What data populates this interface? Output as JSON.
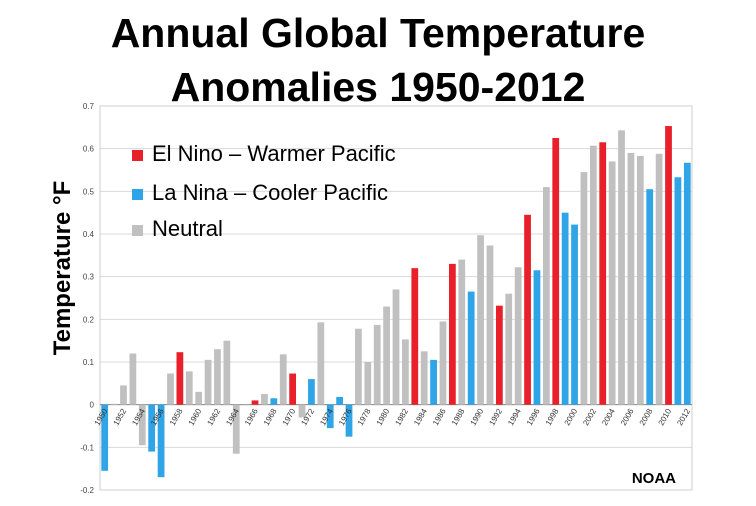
{
  "chart_data": {
    "type": "bar",
    "title_line1": "Annual Global Temperature",
    "title_line2": "Anomalies 1950-2012",
    "ylabel": "Temperature °F",
    "xlabel": "",
    "source": "NOAA",
    "ylim": [
      -0.2,
      0.7
    ],
    "yticks": [
      "0.7",
      "0.6",
      "0.5",
      "0.4",
      "0.3",
      "0.2",
      "0.1",
      "0",
      "-0.1",
      "-0.2"
    ],
    "grid": true,
    "legend_position": "top-left",
    "legend": [
      {
        "key": "elnino",
        "label": "El Nino – Warmer Pacific",
        "color": "#e8202a"
      },
      {
        "key": "lanina",
        "label": "La Nina – Cooler Pacific",
        "color": "#2fa4e7"
      },
      {
        "key": "neutral",
        "label": "Neutral",
        "color": "#c0c0c0"
      }
    ],
    "years": [
      1950,
      1951,
      1952,
      1953,
      1954,
      1955,
      1956,
      1957,
      1958,
      1959,
      1960,
      1961,
      1962,
      1963,
      1964,
      1965,
      1966,
      1967,
      1968,
      1969,
      1970,
      1971,
      1972,
      1973,
      1974,
      1975,
      1976,
      1977,
      1978,
      1979,
      1980,
      1981,
      1982,
      1983,
      1984,
      1985,
      1986,
      1987,
      1988,
      1989,
      1990,
      1991,
      1992,
      1993,
      1994,
      1995,
      1996,
      1997,
      1998,
      1999,
      2000,
      2001,
      2002,
      2003,
      2004,
      2005,
      2006,
      2007,
      2008,
      2009,
      2010,
      2011,
      2012
    ],
    "values": [
      -0.155,
      0.002,
      0.045,
      0.12,
      -0.095,
      -0.11,
      -0.17,
      0.073,
      0.123,
      0.078,
      0.03,
      0.105,
      0.13,
      0.15,
      -0.115,
      0.0,
      0.01,
      0.025,
      0.015,
      0.118,
      0.073,
      -0.03,
      0.06,
      0.193,
      -0.055,
      0.018,
      -0.075,
      0.178,
      0.1,
      0.187,
      0.23,
      0.27,
      0.153,
      0.32,
      0.125,
      0.105,
      0.195,
      0.33,
      0.34,
      0.265,
      0.397,
      0.373,
      0.232,
      0.26,
      0.322,
      0.445,
      0.315,
      0.51,
      0.625,
      0.45,
      0.422,
      0.545,
      0.607,
      0.615,
      0.57,
      0.643,
      0.59,
      0.583,
      0.505,
      0.588,
      0.653,
      0.533,
      0.567
    ],
    "phases": [
      "lanina",
      "neutral",
      "neutral",
      "neutral",
      "neutral",
      "lanina",
      "lanina",
      "neutral",
      "elnino",
      "neutral",
      "neutral",
      "neutral",
      "neutral",
      "neutral",
      "neutral",
      "neutral",
      "elnino",
      "neutral",
      "lanina",
      "neutral",
      "elnino",
      "neutral",
      "lanina",
      "neutral",
      "lanina",
      "lanina",
      "lanina",
      "neutral",
      "neutral",
      "neutral",
      "neutral",
      "neutral",
      "neutral",
      "elnino",
      "neutral",
      "lanina",
      "neutral",
      "elnino",
      "neutral",
      "lanina",
      "neutral",
      "neutral",
      "elnino",
      "neutral",
      "neutral",
      "elnino",
      "lanina",
      "neutral",
      "elnino",
      "lanina",
      "lanina",
      "neutral",
      "neutral",
      "elnino",
      "neutral",
      "neutral",
      "neutral",
      "neutral",
      "lanina",
      "neutral",
      "elnino",
      "lanina",
      "lanina"
    ],
    "xtick_labels": [
      "1950",
      "1952",
      "1954",
      "1956",
      "1958",
      "1960",
      "1962",
      "1964",
      "1966",
      "1968",
      "1970",
      "1972",
      "1974",
      "1976",
      "1978",
      "1980",
      "1982",
      "1984",
      "1986",
      "1988",
      "1990",
      "1992",
      "1994",
      "1996",
      "1998",
      "2000",
      "2002",
      "2004",
      "2006",
      "2008",
      "2010",
      "2012"
    ]
  }
}
